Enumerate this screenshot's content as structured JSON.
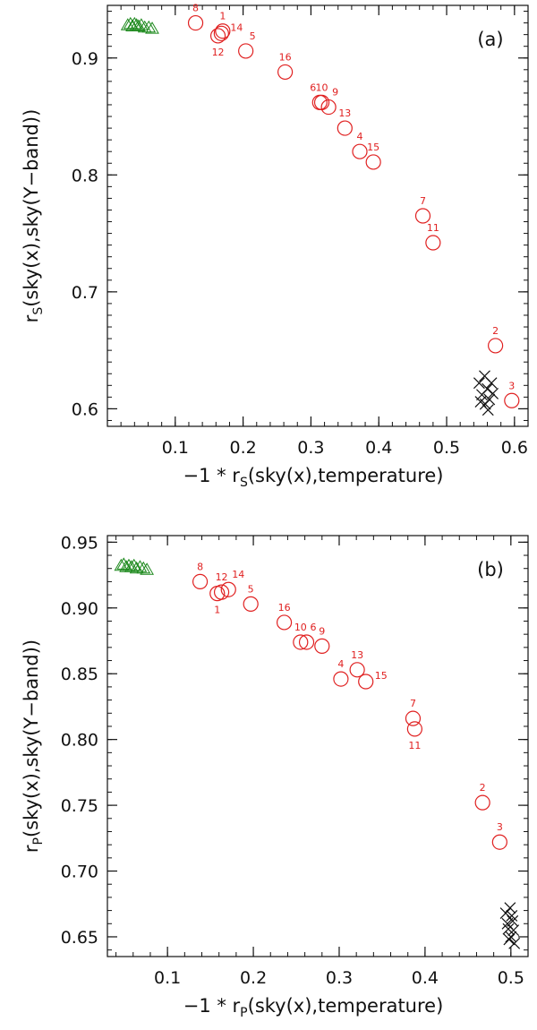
{
  "chart_data": [
    {
      "type": "scatter",
      "panel_label": "(a)",
      "xlabel_main": "−1 * r",
      "xlabel_sub": "S",
      "xlabel_tail": "(sky(x),temperature)",
      "ylabel_main": "r",
      "ylabel_sub": "S",
      "ylabel_tail": "(sky(x),sky(Y−band))",
      "xlim": [
        0.0,
        0.62
      ],
      "ylim": [
        0.585,
        0.945
      ],
      "xticks": [
        0.1,
        0.2,
        0.3,
        0.4,
        0.5,
        0.6
      ],
      "yticks": [
        0.6,
        0.7,
        0.8,
        0.9
      ],
      "xtick_labels": [
        "0.1",
        "0.2",
        "0.3",
        "0.4",
        "0.5",
        "0.6"
      ],
      "ytick_labels": [
        "0.6",
        "0.7",
        "0.8",
        "0.9"
      ],
      "series": [
        {
          "marker": "circle",
          "color": "#e02020",
          "points": [
            {
              "x": 0.17,
              "y": 0.923,
              "label": "1",
              "pos": "above"
            },
            {
              "x": 0.572,
              "y": 0.654,
              "label": "2",
              "pos": "above"
            },
            {
              "x": 0.596,
              "y": 0.607,
              "label": "3",
              "pos": "above"
            },
            {
              "x": 0.372,
              "y": 0.82,
              "label": "4",
              "pos": "above"
            },
            {
              "x": 0.204,
              "y": 0.906,
              "label": "5",
              "pos": "above-right"
            },
            {
              "x": 0.313,
              "y": 0.862,
              "label": "6",
              "pos": "above-left"
            },
            {
              "x": 0.465,
              "y": 0.765,
              "label": "7",
              "pos": "above"
            },
            {
              "x": 0.13,
              "y": 0.93,
              "label": "8",
              "pos": "above"
            },
            {
              "x": 0.326,
              "y": 0.858,
              "label": "9",
              "pos": "above-right"
            },
            {
              "x": 0.316,
              "y": 0.862,
              "label": "10",
              "pos": "above"
            },
            {
              "x": 0.48,
              "y": 0.742,
              "label": "11",
              "pos": "above"
            },
            {
              "x": 0.163,
              "y": 0.919,
              "label": "12",
              "pos": "below"
            },
            {
              "x": 0.35,
              "y": 0.84,
              "label": "13",
              "pos": "above"
            },
            {
              "x": 0.168,
              "y": 0.921,
              "label": "14",
              "pos": "right"
            },
            {
              "x": 0.392,
              "y": 0.811,
              "label": "15",
              "pos": "above"
            },
            {
              "x": 0.262,
              "y": 0.888,
              "label": "16",
              "pos": "above"
            }
          ]
        },
        {
          "marker": "triangle",
          "color": "#1e8a1e",
          "points": [
            {
              "x": 0.03,
              "y": 0.928
            },
            {
              "x": 0.034,
              "y": 0.929
            },
            {
              "x": 0.037,
              "y": 0.927
            },
            {
              "x": 0.04,
              "y": 0.929
            },
            {
              "x": 0.043,
              "y": 0.928
            },
            {
              "x": 0.046,
              "y": 0.927
            },
            {
              "x": 0.05,
              "y": 0.928
            },
            {
              "x": 0.055,
              "y": 0.926
            },
            {
              "x": 0.061,
              "y": 0.926
            },
            {
              "x": 0.066,
              "y": 0.925
            }
          ]
        },
        {
          "marker": "cross",
          "color": "#111111",
          "points": [
            {
              "x": 0.548,
              "y": 0.622
            },
            {
              "x": 0.552,
              "y": 0.612
            },
            {
              "x": 0.556,
              "y": 0.628
            },
            {
              "x": 0.557,
              "y": 0.604
            },
            {
              "x": 0.56,
              "y": 0.617
            },
            {
              "x": 0.563,
              "y": 0.608
            },
            {
              "x": 0.566,
              "y": 0.622
            },
            {
              "x": 0.55,
              "y": 0.606
            },
            {
              "x": 0.561,
              "y": 0.599
            },
            {
              "x": 0.568,
              "y": 0.613
            }
          ]
        }
      ]
    },
    {
      "type": "scatter",
      "panel_label": "(b)",
      "xlabel_main": "−1 * r",
      "xlabel_sub": "P",
      "xlabel_tail": "(sky(x),temperature)",
      "ylabel_main": "r",
      "ylabel_sub": "P",
      "ylabel_tail": "(sky(x),sky(Y−band))",
      "xlim": [
        0.03,
        0.52
      ],
      "ylim": [
        0.635,
        0.955
      ],
      "xticks": [
        0.1,
        0.2,
        0.3,
        0.4,
        0.5
      ],
      "yticks": [
        0.65,
        0.7,
        0.75,
        0.8,
        0.85,
        0.9,
        0.95
      ],
      "xtick_labels": [
        "0.1",
        "0.2",
        "0.3",
        "0.4",
        "0.5"
      ],
      "ytick_labels": [
        "0.65",
        "0.70",
        "0.75",
        "0.80",
        "0.85",
        "0.90",
        "0.95"
      ],
      "series": [
        {
          "marker": "circle",
          "color": "#e02020",
          "points": [
            {
              "x": 0.158,
              "y": 0.911,
              "label": "1",
              "pos": "below"
            },
            {
              "x": 0.467,
              "y": 0.752,
              "label": "2",
              "pos": "above"
            },
            {
              "x": 0.487,
              "y": 0.722,
              "label": "3",
              "pos": "above"
            },
            {
              "x": 0.302,
              "y": 0.846,
              "label": "4",
              "pos": "above"
            },
            {
              "x": 0.197,
              "y": 0.903,
              "label": "5",
              "pos": "above"
            },
            {
              "x": 0.262,
              "y": 0.874,
              "label": "6",
              "pos": "above-right"
            },
            {
              "x": 0.386,
              "y": 0.816,
              "label": "7",
              "pos": "above"
            },
            {
              "x": 0.138,
              "y": 0.92,
              "label": "8",
              "pos": "above"
            },
            {
              "x": 0.28,
              "y": 0.871,
              "label": "9",
              "pos": "above"
            },
            {
              "x": 0.255,
              "y": 0.874,
              "label": "10",
              "pos": "above"
            },
            {
              "x": 0.388,
              "y": 0.808,
              "label": "11",
              "pos": "below"
            },
            {
              "x": 0.163,
              "y": 0.912,
              "label": "12",
              "pos": "above"
            },
            {
              "x": 0.321,
              "y": 0.853,
              "label": "13",
              "pos": "above"
            },
            {
              "x": 0.171,
              "y": 0.914,
              "label": "14",
              "pos": "above-right"
            },
            {
              "x": 0.331,
              "y": 0.844,
              "label": "15",
              "pos": "right"
            },
            {
              "x": 0.236,
              "y": 0.889,
              "label": "16",
              "pos": "above"
            }
          ]
        },
        {
          "marker": "triangle",
          "color": "#1e8a1e",
          "points": [
            {
              "x": 0.046,
              "y": 0.932
            },
            {
              "x": 0.049,
              "y": 0.933
            },
            {
              "x": 0.052,
              "y": 0.931
            },
            {
              "x": 0.055,
              "y": 0.932
            },
            {
              "x": 0.058,
              "y": 0.931
            },
            {
              "x": 0.061,
              "y": 0.932
            },
            {
              "x": 0.064,
              "y": 0.93
            },
            {
              "x": 0.068,
              "y": 0.931
            },
            {
              "x": 0.072,
              "y": 0.93
            },
            {
              "x": 0.076,
              "y": 0.929
            }
          ]
        },
        {
          "marker": "cross",
          "color": "#111111",
          "points": [
            {
              "x": 0.494,
              "y": 0.668
            },
            {
              "x": 0.497,
              "y": 0.656
            },
            {
              "x": 0.499,
              "y": 0.672
            },
            {
              "x": 0.5,
              "y": 0.65
            },
            {
              "x": 0.502,
              "y": 0.662
            },
            {
              "x": 0.504,
              "y": 0.645
            },
            {
              "x": 0.496,
              "y": 0.66
            },
            {
              "x": 0.501,
              "y": 0.666
            },
            {
              "x": 0.503,
              "y": 0.655
            },
            {
              "x": 0.498,
              "y": 0.648
            }
          ]
        }
      ]
    }
  ]
}
